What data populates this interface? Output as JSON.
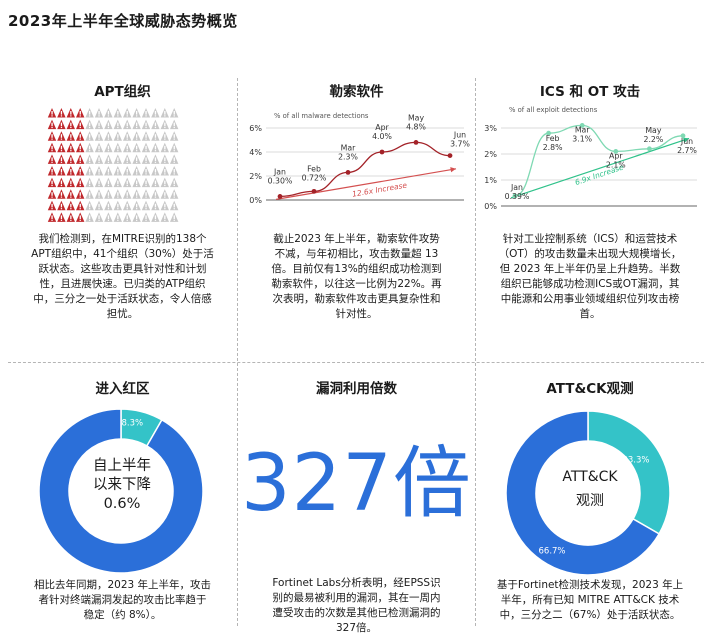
{
  "page": {
    "title": "2023年上半年全球威胁态势概览"
  },
  "panels": {
    "apt": {
      "title": "APT组织",
      "desc": [
        "我们检测到，在MITRE识别的138个",
        "APT组织中，41个组织（30%）处于活",
        "跃状态。这些攻击更具针对性和计划",
        "性，且进展快速。已归类的ATP组织",
        "中，三分之一处于活跃状态，令人倍感",
        "担忧。"
      ]
    },
    "ransom": {
      "title": "勒索软件",
      "desc": [
        "截止2023 年上半年，勒索软件攻势",
        "不减，与年初相比，攻击数量超 13",
        "倍。目前仅有13%的组织成功检测到",
        "勒索软件，以往这一比例为22%。再",
        "次表明，勒索软件攻击更具复杂性和",
        "针对性。"
      ]
    },
    "ics": {
      "title": "ICS 和 OT 攻击",
      "desc": [
        "针对工业控制系统（ICS）和运营技术",
        "（OT）的攻击数量未出现大规模增长，",
        "但 2023 年上半年仍呈上升趋势。半数",
        "组织已能够成功检测ICS或OT漏洞，其",
        "中能源和公用事业领域组织位列攻击榜",
        "首。"
      ]
    },
    "redzone": {
      "title": "进入红区",
      "center": [
        "自上半年",
        "以来下降",
        "0.6%"
      ],
      "desc": [
        "相比去年同期，2023 年上半年，攻击",
        "者针对终端漏洞发起的攻击比率趋于",
        "稳定（约 8%）。"
      ]
    },
    "exploit": {
      "title": "漏洞利用倍数",
      "big": "327倍",
      "desc": [
        "Fortinet Labs分析表明，经EPSS识",
        "别的最易被利用的漏洞，其在一周内",
        "遭受攻击的次数是其他已检测漏洞的",
        "327倍。"
      ]
    },
    "attck": {
      "title": "ATT&CK观测",
      "center": [
        "ATT&CK",
        "观测"
      ],
      "desc": [
        "基于Fortinet检测技术发现，2023 年上",
        "半年，所有已知 MITRE ATT&CK 技术",
        "中，三分之二（67%）处于活跃状态。"
      ]
    }
  },
  "colors": {
    "red": "#c0282c",
    "gray": "#c8c8c8",
    "blue": "#2b6fd9",
    "teal": "#34c3c8",
    "green": "#2fc28a",
    "dark_red": "#a32228"
  },
  "chart_data": [
    {
      "type": "waffle",
      "title": "APT组织",
      "total": 138,
      "active": 41,
      "active_pct": "30%",
      "rows": 10,
      "cols": 14
    },
    {
      "type": "line",
      "title": "勒索软件",
      "ylabel": "% of all malware detections",
      "y_ticks": [
        "0%",
        "2%",
        "4%",
        "6%"
      ],
      "ylim": [
        0,
        6
      ],
      "categories": [
        "Jan",
        "Feb",
        "Mar",
        "Apr",
        "May",
        "Jun"
      ],
      "values": [
        0.3,
        0.72,
        2.3,
        4.0,
        4.8,
        3.7
      ],
      "value_labels": [
        "0.30%",
        "0.72%",
        "2.3%",
        "4.0%",
        "4.8%",
        "3.7%"
      ],
      "trend_label": "12.6x Increase"
    },
    {
      "type": "line",
      "title": "ICS 和 OT 攻击",
      "ylabel": "% of all exploit detections",
      "y_ticks": [
        "0%",
        "1%",
        "2%",
        "3%"
      ],
      "ylim": [
        0,
        3
      ],
      "categories": [
        "Jan",
        "Feb",
        "Mar",
        "Apr",
        "May",
        "Jun"
      ],
      "values": [
        0.39,
        2.8,
        3.1,
        2.1,
        2.2,
        2.7
      ],
      "value_labels": [
        "0.39%",
        "2.8%",
        "3.1%",
        "2.1%",
        "2.2%",
        "2.7%"
      ],
      "trend_label": "6.9x Increase"
    },
    {
      "type": "pie",
      "title": "进入红区",
      "labels": [
        "8.3%",
        "91.7%"
      ],
      "values": [
        8.3,
        91.7
      ]
    },
    {
      "type": "pie",
      "title": "ATT&CK观测",
      "labels": [
        "33.3%",
        "66.7%"
      ],
      "values": [
        33.3,
        66.7
      ]
    }
  ]
}
